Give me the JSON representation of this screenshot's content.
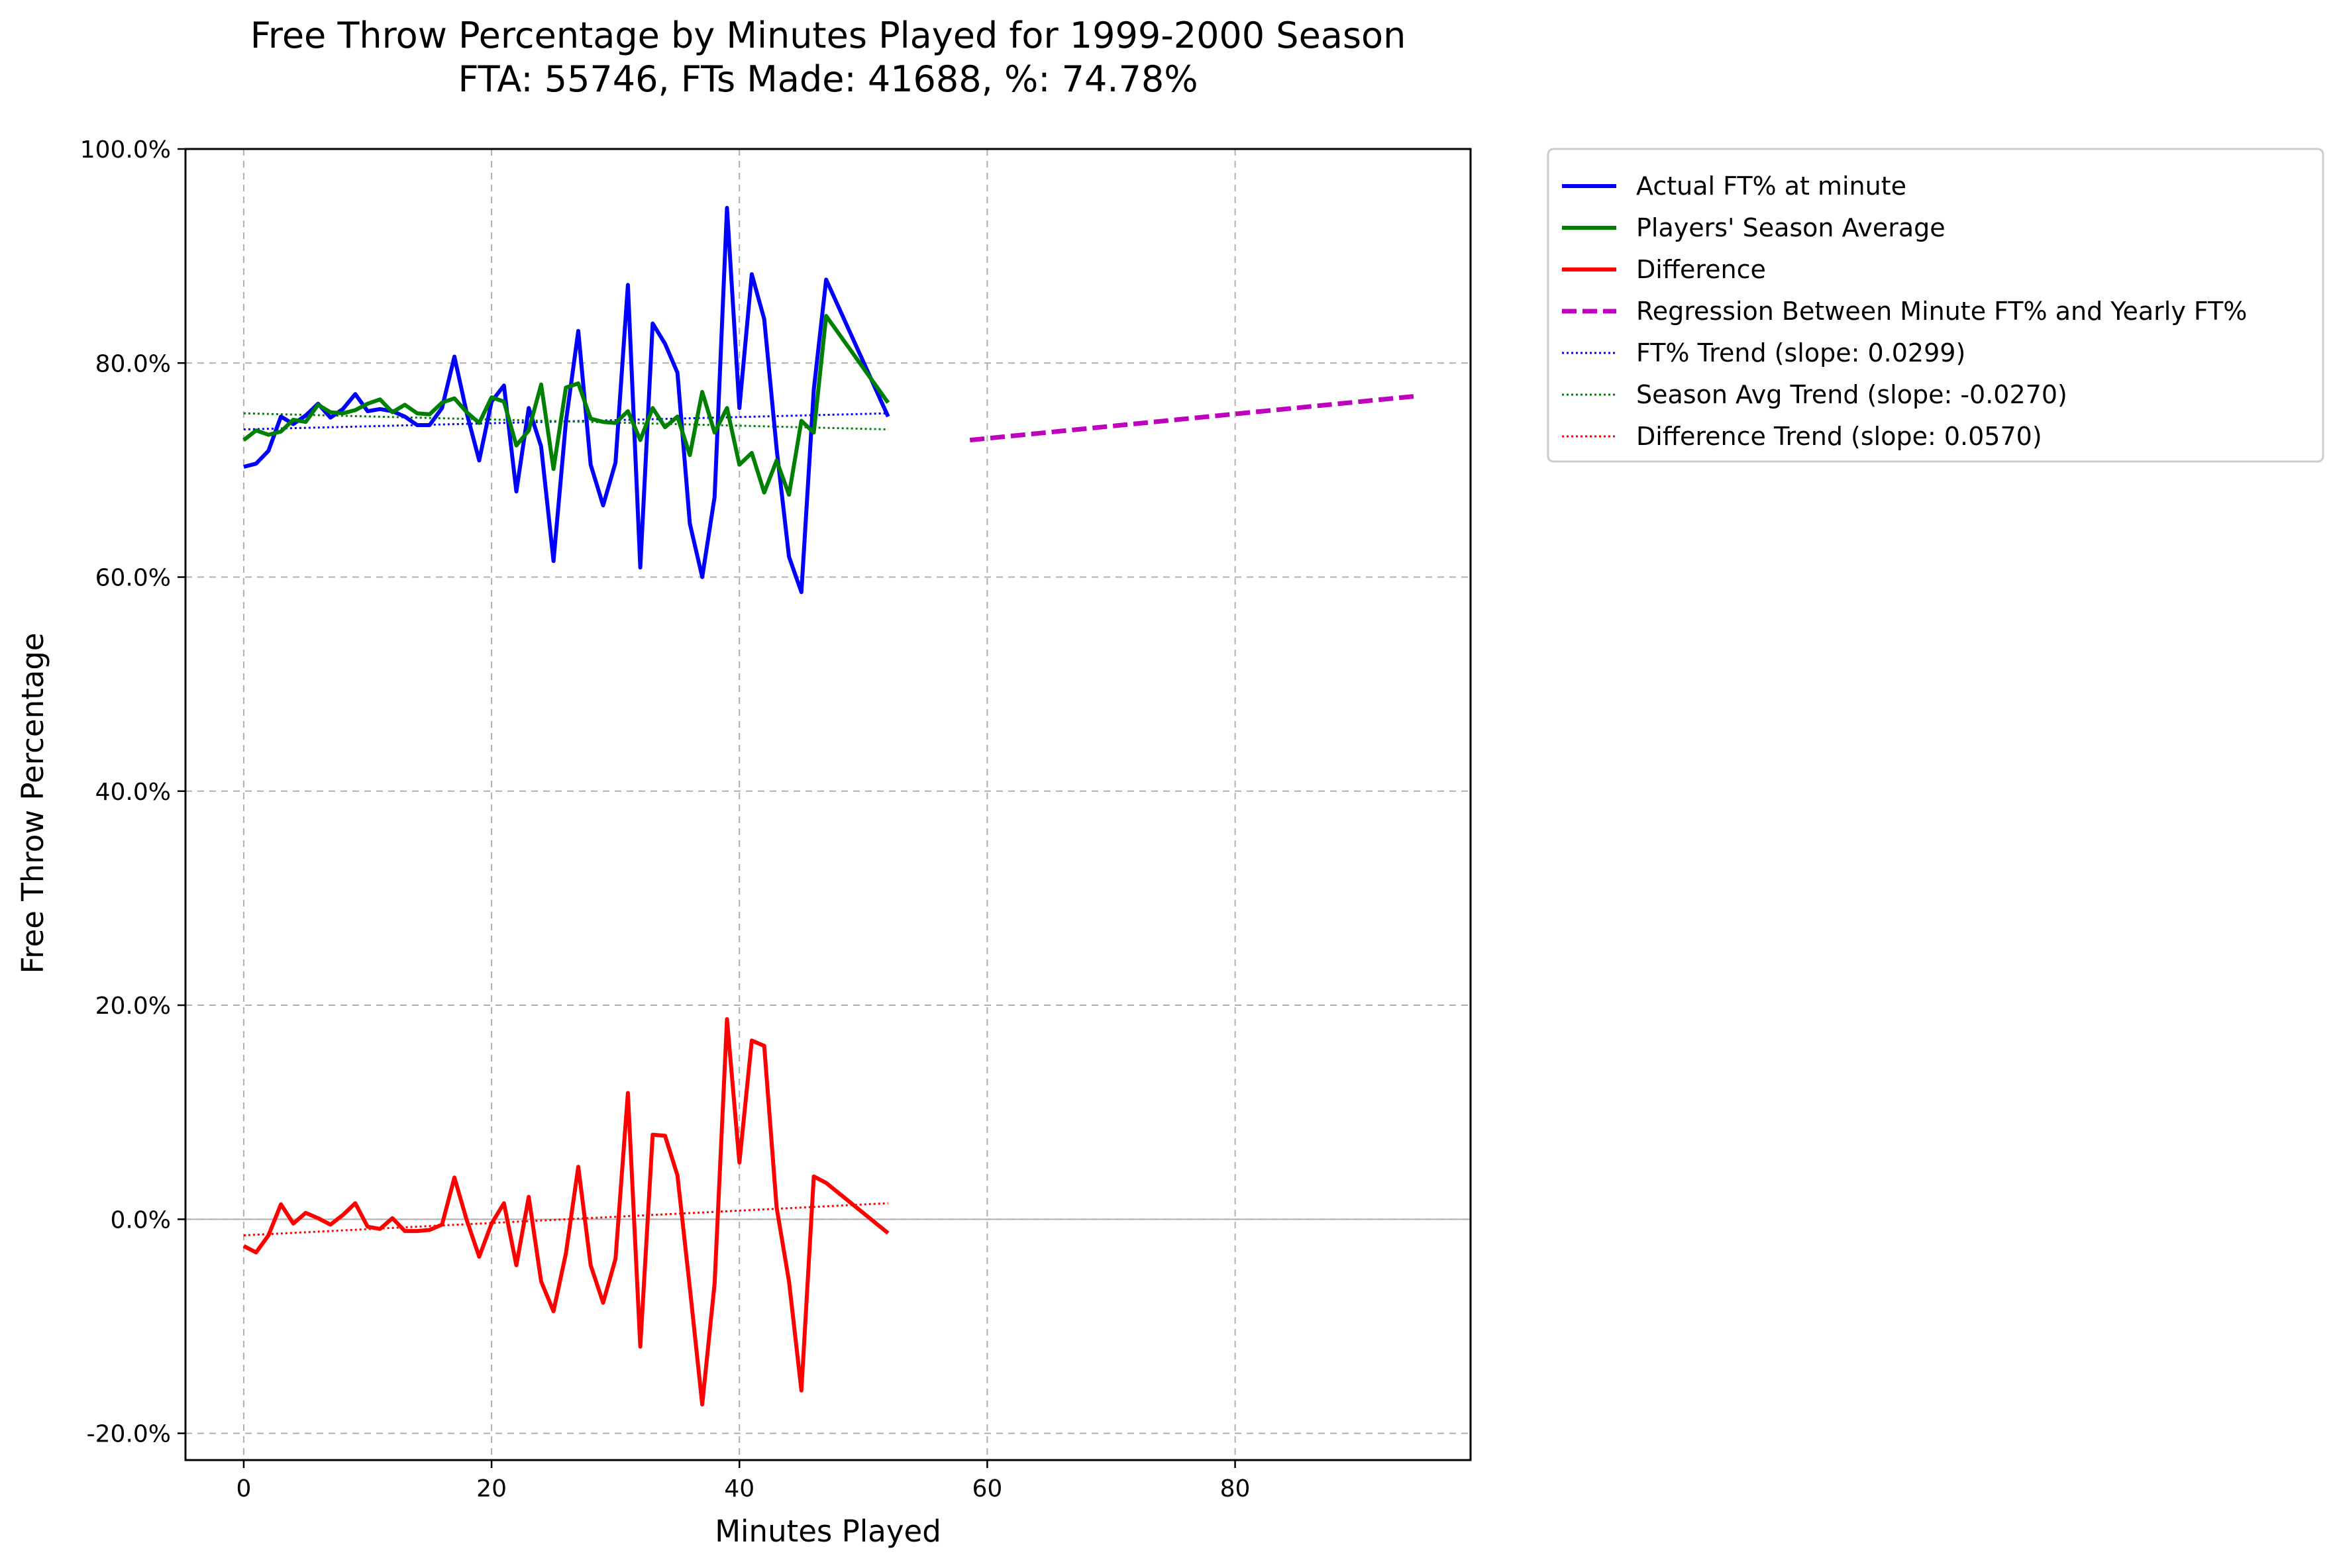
{
  "chart_data": {
    "type": "line",
    "title": "Free Throw Percentage by Minutes Played for 1999-2000 Season",
    "subtitle": "FTA: 55746, FTs Made: 41688, %: 74.78%",
    "xlabel": "Minutes Played",
    "ylabel": "Free Throw Percentage",
    "xlim": [
      -4.7,
      99
    ],
    "ylim": [
      -22.5,
      100
    ],
    "xticks": [
      0,
      20,
      40,
      60,
      80
    ],
    "yticks": [
      -20,
      0,
      20,
      40,
      60,
      80,
      100
    ],
    "ytick_labels": [
      "-20.0%",
      "0.0%",
      "20.0%",
      "40.0%",
      "60.0%",
      "80.0%",
      "100.0%"
    ],
    "grid": true,
    "legend_position": "outside-top-right",
    "series": [
      {
        "name": "Actual FT% at minute",
        "color": "#0000ff",
        "style": "solid",
        "x": [
          0,
          1,
          2,
          3,
          4,
          5,
          6,
          7,
          8,
          9,
          10,
          11,
          12,
          13,
          14,
          15,
          16,
          17,
          18,
          19,
          20,
          21,
          22,
          23,
          24,
          25,
          26,
          27,
          28,
          29,
          30,
          31,
          32,
          33,
          34,
          35,
          36,
          37,
          38,
          39,
          40,
          41,
          42,
          43,
          44,
          45,
          46,
          47,
          52
        ],
        "y": [
          70.3,
          70.6,
          71.8,
          75.0,
          74.3,
          75.1,
          76.2,
          74.9,
          75.7,
          77.1,
          75.5,
          75.7,
          75.5,
          75.0,
          74.2,
          74.2,
          75.8,
          80.6,
          75.3,
          70.9,
          76.4,
          77.9,
          68.0,
          75.8,
          72.2,
          61.5,
          74.5,
          83.0,
          70.5,
          66.7,
          70.7,
          87.3,
          60.9,
          83.7,
          81.8,
          79.1,
          65.0,
          60.0,
          67.5,
          94.5,
          75.8,
          88.3,
          84.1,
          72.0,
          61.9,
          58.6,
          77.5,
          87.8,
          75.0
        ]
      },
      {
        "name": "Players' Season Average",
        "color": "#008000",
        "style": "solid",
        "x": [
          0,
          1,
          2,
          3,
          4,
          5,
          6,
          7,
          8,
          9,
          10,
          11,
          12,
          13,
          14,
          15,
          16,
          17,
          18,
          19,
          20,
          21,
          22,
          23,
          24,
          25,
          26,
          27,
          28,
          29,
          30,
          31,
          32,
          33,
          34,
          35,
          36,
          37,
          38,
          39,
          40,
          41,
          42,
          43,
          44,
          45,
          46,
          47,
          52
        ],
        "y": [
          72.8,
          73.7,
          73.3,
          73.6,
          74.7,
          74.5,
          76.1,
          75.4,
          75.3,
          75.6,
          76.2,
          76.6,
          75.4,
          76.1,
          75.3,
          75.2,
          76.3,
          76.7,
          75.4,
          74.4,
          76.8,
          76.4,
          72.3,
          73.7,
          78.0,
          70.1,
          77.7,
          78.1,
          74.8,
          74.5,
          74.4,
          75.5,
          72.8,
          75.8,
          74.0,
          75.0,
          71.4,
          77.3,
          73.5,
          75.8,
          70.5,
          71.6,
          67.9,
          70.9,
          67.7,
          74.6,
          73.5,
          84.4,
          76.3
        ]
      },
      {
        "name": "Difference",
        "color": "#ff0000",
        "style": "solid",
        "x": [
          0,
          1,
          2,
          3,
          4,
          5,
          6,
          7,
          8,
          9,
          10,
          11,
          12,
          13,
          14,
          15,
          16,
          17,
          18,
          19,
          20,
          21,
          22,
          23,
          24,
          25,
          26,
          27,
          28,
          29,
          30,
          31,
          32,
          33,
          34,
          35,
          36,
          37,
          38,
          39,
          40,
          41,
          42,
          43,
          44,
          45,
          46,
          47,
          52
        ],
        "y": [
          -2.5,
          -3.1,
          -1.5,
          1.4,
          -0.4,
          0.6,
          0.1,
          -0.5,
          0.4,
          1.5,
          -0.7,
          -0.9,
          0.1,
          -1.1,
          -1.1,
          -1.0,
          -0.5,
          3.9,
          -0.1,
          -3.5,
          -0.4,
          1.5,
          -4.3,
          2.1,
          -5.8,
          -8.6,
          -3.2,
          4.9,
          -4.3,
          -7.8,
          -3.7,
          11.8,
          -11.9,
          7.9,
          7.8,
          4.1,
          -6.4,
          -17.3,
          -6.0,
          18.7,
          5.3,
          16.7,
          16.2,
          1.1,
          -5.8,
          -16.0,
          4.0,
          3.4,
          -1.3
        ]
      },
      {
        "name": "Regression Between Minute FT% and Yearly FT%",
        "color": "#bf00bf",
        "style": "dashed",
        "x": [
          58.6,
          94.5
        ],
        "y": [
          72.8,
          76.9
        ]
      },
      {
        "name": "FT% Trend (slope: 0.0299)",
        "color": "#0000ff",
        "style": "dotted",
        "x": [
          0,
          52
        ],
        "y": [
          73.8,
          75.3
        ]
      },
      {
        "name": "Season Avg Trend (slope: -0.0270)",
        "color": "#008000",
        "style": "dotted",
        "x": [
          0,
          52
        ],
        "y": [
          75.3,
          73.8
        ]
      },
      {
        "name": "Difference Trend (slope: 0.0570)",
        "color": "#ff0000",
        "style": "dotted",
        "x": [
          0,
          52
        ],
        "y": [
          -1.5,
          1.5
        ]
      }
    ]
  }
}
